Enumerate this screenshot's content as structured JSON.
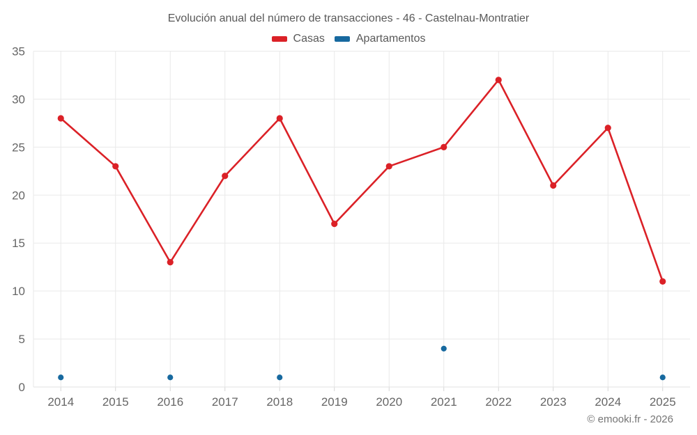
{
  "title": "Evolución anual del número de transacciones - 46 - Castelnau-Montratier",
  "legend": {
    "items": [
      {
        "label": "Casas",
        "color": "#db2127"
      },
      {
        "label": "Apartamentos",
        "color": "#17699f"
      }
    ]
  },
  "footer": {
    "copyright": "© emooki.fr - 2026"
  },
  "chart_data": {
    "type": "line",
    "title": "Evolución anual del número de transacciones - 46 - Castelnau-Montratier",
    "categories": [
      "2014",
      "2015",
      "2016",
      "2017",
      "2018",
      "2019",
      "2020",
      "2021",
      "2022",
      "2023",
      "2024",
      "2025"
    ],
    "series": [
      {
        "name": "Casas",
        "color": "#db2127",
        "values": [
          28,
          23,
          13,
          22,
          28,
          17,
          23,
          25,
          32,
          21,
          27,
          11
        ]
      },
      {
        "name": "Apartamentos",
        "color": "#17699f",
        "values": [
          1,
          null,
          1,
          null,
          1,
          null,
          null,
          4,
          null,
          null,
          null,
          1
        ]
      }
    ],
    "ylim": [
      0,
      35
    ],
    "yticks": [
      0,
      5,
      10,
      15,
      20,
      25,
      30,
      35
    ],
    "grid": true,
    "legend_position": "top",
    "xlabel": "",
    "ylabel": ""
  }
}
